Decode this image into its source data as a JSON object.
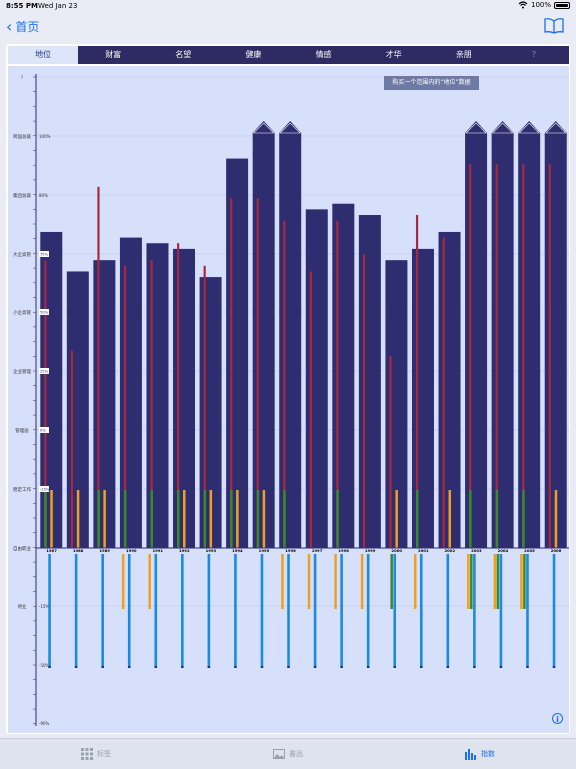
{
  "status": {
    "time": "8:55 PM",
    "date": "Wed Jan 23",
    "battery": "100%"
  },
  "nav": {
    "back_label": "首页"
  },
  "tabs": [
    {
      "label": "地位",
      "active": true
    },
    {
      "label": "财富"
    },
    {
      "label": "名望"
    },
    {
      "label": "健康"
    },
    {
      "label": "情感"
    },
    {
      "label": "才华"
    },
    {
      "label": "亲朋"
    },
    {
      "label": "?"
    }
  ],
  "tooltip": "购买一个范围内的“地位”数据",
  "chart_data": {
    "type": "bar",
    "y_levels": [
      "?",
      "跨国总裁",
      "集团总裁",
      "大企高管",
      "小企高管",
      "企业管理",
      "管理层",
      "稳定工作",
      "自由职业",
      "待业"
    ],
    "pct_labels": [
      "100%",
      "80%",
      "75%",
      "50%",
      "25%",
      "0%",
      "-15%",
      "-50%",
      "-90%"
    ],
    "inner_pct_labels": [
      "75%",
      "50%",
      "25%",
      "0%",
      "-25%"
    ],
    "years": [
      "1987",
      "1988",
      "1989",
      "1990",
      "1991",
      "1992",
      "1993",
      "1994",
      "1995",
      "1996",
      "1997",
      "1998",
      "1999",
      "2000",
      "2001",
      "2002",
      "2003",
      "2004",
      "2005",
      "2006"
    ],
    "series": [
      {
        "name": "",
        "color": "#2e2d70",
        "values": [
          56,
          49,
          51,
          55,
          54,
          53,
          48,
          69,
          73,
          73,
          60,
          61,
          59,
          51,
          53,
          56,
          73,
          73,
          73,
          73
        ]
      },
      {
        "name": "",
        "color": "#a8283f",
        "values": [
          51,
          35,
          64,
          50,
          51,
          54,
          50,
          62,
          62,
          58,
          49,
          58,
          52,
          34,
          59,
          55,
          68,
          68,
          68,
          68
        ]
      }
    ],
    "overflow": [
      false,
      false,
      false,
      false,
      false,
      false,
      false,
      false,
      true,
      true,
      false,
      false,
      false,
      false,
      false,
      false,
      true,
      true,
      true,
      true
    ],
    "green": [
      1,
      0,
      1,
      1,
      1,
      1,
      1,
      1,
      1,
      1,
      0,
      1,
      0,
      0,
      1,
      0,
      1,
      1,
      1,
      0
    ],
    "orange": [
      1,
      1,
      1,
      0,
      0,
      1,
      1,
      1,
      1,
      0,
      0,
      0,
      0,
      1,
      0,
      1,
      0,
      0,
      0,
      1
    ],
    "neg_green": [
      0,
      0,
      0,
      0,
      0,
      0,
      0,
      0,
      0,
      0,
      0,
      0,
      0,
      1,
      0,
      0,
      1,
      1,
      1,
      0
    ],
    "neg_orange": [
      0,
      0,
      0,
      1,
      1,
      0,
      0,
      0,
      0,
      1,
      1,
      1,
      1,
      0,
      1,
      0,
      1,
      1,
      1,
      0
    ],
    "colors": {
      "green": "#3a8a2a",
      "orange": "#f0a020",
      "blue": "#1a8be0",
      "bar": "#2e2d70",
      "red": "#a8283f"
    }
  },
  "tabbar": [
    {
      "label": "标签",
      "icon": "grid-icon"
    },
    {
      "label": "書品",
      "icon": "image-icon"
    },
    {
      "label": "指数",
      "icon": "bar-chart-icon",
      "active": true
    }
  ]
}
